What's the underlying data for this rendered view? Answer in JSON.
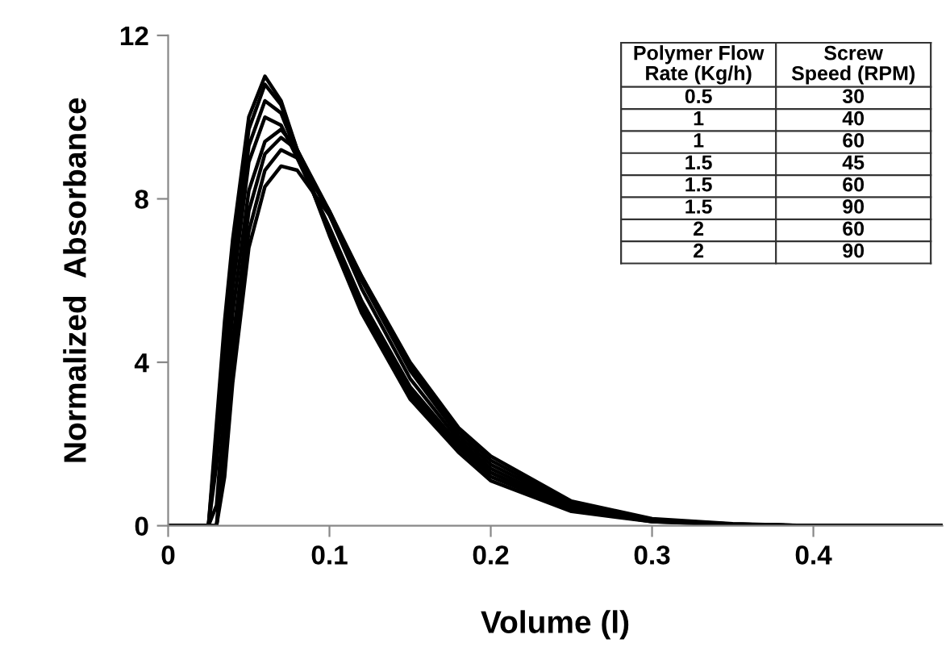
{
  "chart_data": {
    "type": "line",
    "xlabel": "Volume (l)",
    "ylabel": "Normalized  Absorbance",
    "x": [
      0,
      0.025,
      0.03,
      0.035,
      0.04,
      0.05,
      0.06,
      0.07,
      0.08,
      0.1,
      0.12,
      0.15,
      0.18,
      0.2,
      0.25,
      0.3,
      0.35,
      0.4,
      0.48
    ],
    "series": [
      {
        "color": "#000000",
        "values": [
          0,
          0,
          2.5,
          5,
          7,
          10,
          11.0,
          10.4,
          9.2,
          7.1,
          5.2,
          3.1,
          1.8,
          1.1,
          0.35,
          0.1,
          0.02,
          0,
          0
        ]
      },
      {
        "color": "#000000",
        "values": [
          0,
          0,
          2.2,
          4.6,
          6.6,
          9.7,
          10.8,
          10.3,
          9.2,
          7.2,
          5.3,
          3.2,
          1.9,
          1.2,
          0.4,
          0.1,
          0.03,
          0,
          0
        ]
      },
      {
        "color": "#000000",
        "values": [
          0,
          0,
          1.8,
          4.2,
          6.2,
          9.3,
          10.4,
          10.1,
          9.1,
          7.2,
          5.4,
          3.3,
          2.0,
          1.3,
          0.4,
          0.12,
          0.03,
          0,
          0
        ]
      },
      {
        "color": "#000000",
        "values": [
          0,
          0,
          1.5,
          3.8,
          5.8,
          8.9,
          10.0,
          9.8,
          9.0,
          7.3,
          5.5,
          3.4,
          2.0,
          1.3,
          0.42,
          0.12,
          0.03,
          0,
          0
        ]
      },
      {
        "color": "#000000",
        "values": [
          0,
          0,
          0.5,
          3,
          5.2,
          8.2,
          9.4,
          9.7,
          9.2,
          7.6,
          5.8,
          3.6,
          2.1,
          1.4,
          0.45,
          0.13,
          0.03,
          0,
          0
        ]
      },
      {
        "color": "#000000",
        "values": [
          0,
          0,
          0,
          2.2,
          4.5,
          7.7,
          9.1,
          9.5,
          9.2,
          7.7,
          6.0,
          3.8,
          2.2,
          1.5,
          0.5,
          0.14,
          0.04,
          0,
          0
        ]
      },
      {
        "color": "#000000",
        "values": [
          0,
          0,
          0,
          1.8,
          4.0,
          7.2,
          8.7,
          9.2,
          9.0,
          7.7,
          6.1,
          3.9,
          2.3,
          1.6,
          0.55,
          0.15,
          0.04,
          0,
          0
        ]
      },
      {
        "color": "#000000",
        "values": [
          0,
          0,
          0,
          1.2,
          3.5,
          6.8,
          8.3,
          8.8,
          8.7,
          7.6,
          6.1,
          4.0,
          2.4,
          1.7,
          0.6,
          0.17,
          0.05,
          0,
          0
        ]
      }
    ],
    "xlim": [
      0,
      0.48
    ],
    "xticks": [
      0,
      0.1,
      0.2,
      0.3,
      0.4
    ],
    "ylim": [
      0,
      12
    ],
    "yticks": [
      0,
      4,
      8,
      12
    ],
    "grid": false,
    "legend": false,
    "marker": "none",
    "line_style": "solid",
    "annotations": [
      "Polymer Flow\nRate (Kg/h)",
      "Screw\nSpeed (RPM)",
      "0.5",
      "30",
      "1",
      "40",
      "1",
      "60",
      "1.5",
      "45",
      "1.5",
      "60",
      "1.5",
      "90",
      "2",
      "60",
      "2",
      "90"
    ]
  }
}
